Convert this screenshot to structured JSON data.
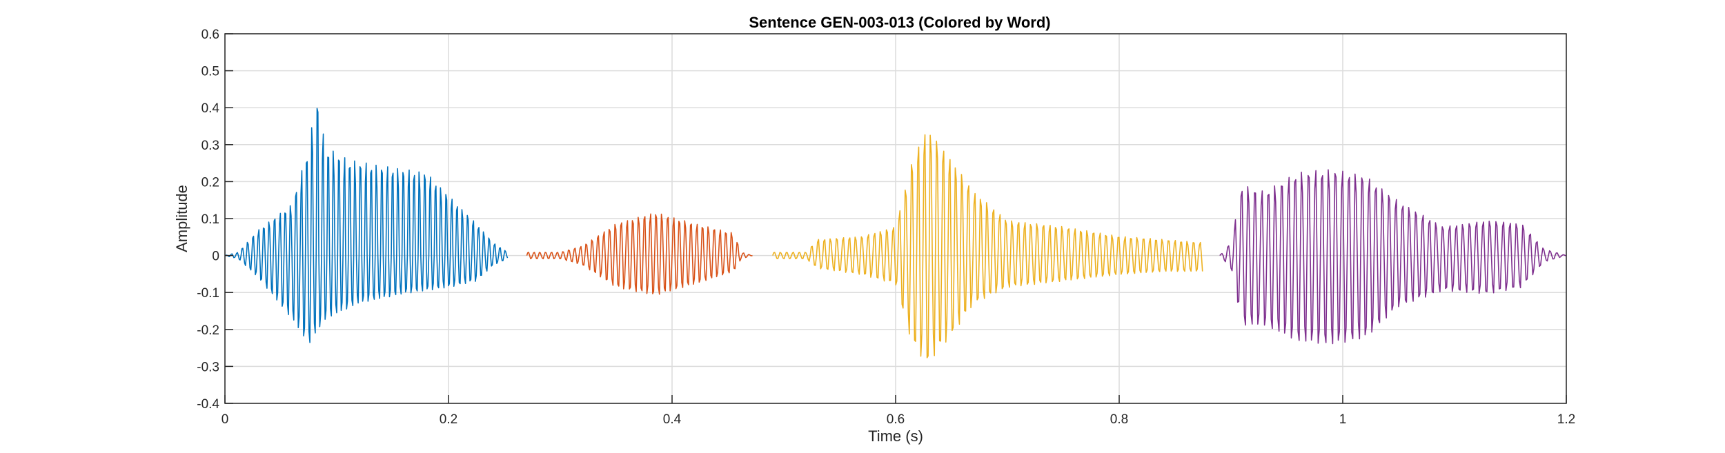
{
  "chart_data": {
    "type": "line",
    "title": "Sentence GEN-003-013 (Colored by Word)",
    "xlabel": "Time (s)",
    "ylabel": "Amplitude",
    "xlim": [
      0,
      1.2
    ],
    "ylim": [
      -0.4,
      0.6
    ],
    "xticks": [
      0,
      0.2,
      0.4,
      0.6,
      0.8,
      1,
      1.2
    ],
    "yticks": [
      -0.4,
      -0.3,
      -0.2,
      -0.1,
      0,
      0.1,
      0.2,
      0.3,
      0.4,
      0.5,
      0.6
    ],
    "grid": true,
    "legend": "none",
    "series": [
      {
        "color": "#0072BD",
        "t_start": 0.0,
        "t_end": 0.253,
        "envelope": [
          [
            0.0,
            0.0
          ],
          [
            0.012,
            0.01
          ],
          [
            0.03,
            0.08
          ],
          [
            0.06,
            0.16
          ],
          [
            0.075,
            0.34
          ],
          [
            0.082,
            0.5
          ],
          [
            0.09,
            0.34
          ],
          [
            0.11,
            0.3
          ],
          [
            0.14,
            0.28
          ],
          [
            0.18,
            0.26
          ],
          [
            0.205,
            0.17
          ],
          [
            0.225,
            0.1
          ],
          [
            0.24,
            0.04
          ],
          [
            0.253,
            0.01
          ]
        ],
        "min_envelope": [
          [
            0.0,
            0.0
          ],
          [
            0.012,
            0.01
          ],
          [
            0.03,
            0.07
          ],
          [
            0.06,
            0.2
          ],
          [
            0.075,
            0.28
          ],
          [
            0.09,
            0.2
          ],
          [
            0.12,
            0.15
          ],
          [
            0.16,
            0.12
          ],
          [
            0.2,
            0.1
          ],
          [
            0.225,
            0.08
          ],
          [
            0.24,
            0.03
          ],
          [
            0.253,
            0.01
          ]
        ]
      },
      {
        "color": "#D95319",
        "t_start": 0.27,
        "t_end": 0.472,
        "envelope": [
          [
            0.27,
            0.01
          ],
          [
            0.3,
            0.01
          ],
          [
            0.32,
            0.03
          ],
          [
            0.35,
            0.1
          ],
          [
            0.385,
            0.135
          ],
          [
            0.42,
            0.1
          ],
          [
            0.455,
            0.07
          ],
          [
            0.462,
            0.01
          ],
          [
            0.472,
            0.0
          ]
        ],
        "min_envelope": [
          [
            0.27,
            0.01
          ],
          [
            0.3,
            0.01
          ],
          [
            0.32,
            0.03
          ],
          [
            0.35,
            0.1
          ],
          [
            0.385,
            0.125
          ],
          [
            0.42,
            0.09
          ],
          [
            0.455,
            0.05
          ],
          [
            0.462,
            0.01
          ],
          [
            0.472,
            0.0
          ]
        ]
      },
      {
        "color": "#EDB120",
        "t_start": 0.49,
        "t_end": 0.875,
        "envelope": [
          [
            0.49,
            0.01
          ],
          [
            0.52,
            0.01
          ],
          [
            0.53,
            0.05
          ],
          [
            0.57,
            0.06
          ],
          [
            0.6,
            0.09
          ],
          [
            0.615,
            0.3
          ],
          [
            0.628,
            0.4
          ],
          [
            0.65,
            0.3
          ],
          [
            0.67,
            0.2
          ],
          [
            0.7,
            0.11
          ],
          [
            0.75,
            0.09
          ],
          [
            0.8,
            0.06
          ],
          [
            0.84,
            0.05
          ],
          [
            0.875,
            0.04
          ]
        ],
        "min_envelope": [
          [
            0.49,
            0.01
          ],
          [
            0.52,
            0.01
          ],
          [
            0.53,
            0.04
          ],
          [
            0.57,
            0.06
          ],
          [
            0.6,
            0.09
          ],
          [
            0.615,
            0.28
          ],
          [
            0.628,
            0.34
          ],
          [
            0.65,
            0.25
          ],
          [
            0.67,
            0.15
          ],
          [
            0.7,
            0.1
          ],
          [
            0.75,
            0.08
          ],
          [
            0.8,
            0.06
          ],
          [
            0.84,
            0.05
          ],
          [
            0.875,
            0.05
          ]
        ]
      },
      {
        "color": "#7E2F8E",
        "t_start": 0.89,
        "t_end": 1.2,
        "envelope": [
          [
            0.89,
            0.0
          ],
          [
            0.9,
            0.04
          ],
          [
            0.91,
            0.22
          ],
          [
            0.93,
            0.2
          ],
          [
            0.96,
            0.26
          ],
          [
            0.99,
            0.27
          ],
          [
            1.02,
            0.25
          ],
          [
            1.05,
            0.17
          ],
          [
            1.09,
            0.09
          ],
          [
            1.13,
            0.11
          ],
          [
            1.16,
            0.1
          ],
          [
            1.18,
            0.02
          ],
          [
            1.2,
            0.0
          ]
        ],
        "min_envelope": [
          [
            0.89,
            0.0
          ],
          [
            0.9,
            0.04
          ],
          [
            0.91,
            0.22
          ],
          [
            0.93,
            0.22
          ],
          [
            0.96,
            0.27
          ],
          [
            0.99,
            0.28
          ],
          [
            1.02,
            0.26
          ],
          [
            1.05,
            0.16
          ],
          [
            1.09,
            0.11
          ],
          [
            1.13,
            0.12
          ],
          [
            1.16,
            0.1
          ],
          [
            1.18,
            0.02
          ],
          [
            1.2,
            0.0
          ]
        ]
      }
    ]
  }
}
